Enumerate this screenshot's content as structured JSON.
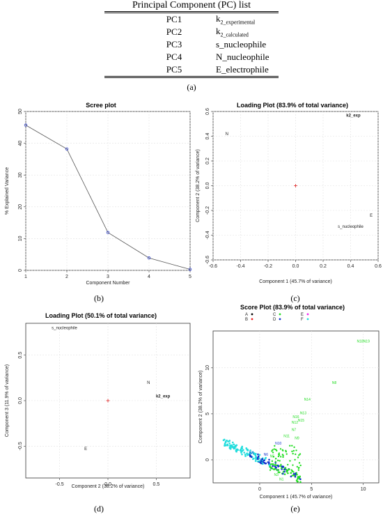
{
  "table": {
    "title": "Principal Component (PC) list",
    "rows": [
      {
        "pc": "PC1",
        "var_main": "k",
        "var_sub": "2_experimental"
      },
      {
        "pc": "PC2",
        "var_main": "k",
        "var_sub": "2_calculated"
      },
      {
        "pc": "PC3",
        "var_main": "s_nucleophile",
        "var_sub": ""
      },
      {
        "pc": "PC4",
        "var_main": "N_nucleophile",
        "var_sub": ""
      },
      {
        "pc": "PC5",
        "var_main": "E_electrophile",
        "var_sub": ""
      }
    ],
    "panel_label": "(a)"
  },
  "panel_labels": {
    "b": "(b)",
    "c": "(c)",
    "d": "(d)",
    "e": "(e)"
  },
  "chart_data": [
    {
      "type": "line",
      "title": "Scree plot",
      "xlabel": "Component Number",
      "ylabel": "% Explained Variance",
      "x": [
        1,
        2,
        3,
        4,
        5
      ],
      "values": [
        45.7,
        38.2,
        11.9,
        3.9,
        0.3
      ],
      "xlim": [
        1,
        5
      ],
      "ylim": [
        0,
        50
      ],
      "yticks": [
        0,
        10,
        20,
        30,
        40,
        50
      ],
      "xticks": [
        1,
        2,
        3,
        4,
        5
      ],
      "grid": true,
      "color": "#3344cc"
    },
    {
      "type": "scatter",
      "title": "Loading Plot (83.9% of total variance)",
      "xlabel": "Component 1 (45.7% of variance)",
      "ylabel": "Component 2 (38.2% of variance)",
      "xlim": [
        -0.6,
        0.6
      ],
      "ylim": [
        -0.6,
        0.6
      ],
      "xticks": [
        -0.6,
        -0.4,
        -0.2,
        0.0,
        0.2,
        0.4,
        0.6
      ],
      "yticks": [
        -0.6,
        -0.4,
        -0.2,
        0.0,
        0.2,
        0.4,
        0.6
      ],
      "grid": true,
      "points": [
        {
          "label": "k2_exp",
          "x": 0.42,
          "y": 0.57
        },
        {
          "label": "N",
          "x": -0.5,
          "y": 0.42
        },
        {
          "label": "E",
          "x": 0.55,
          "y": -0.24
        },
        {
          "label": "s_nucleophile",
          "x": 0.4,
          "y": -0.33
        }
      ],
      "origin_marker": {
        "x": 0,
        "y": 0,
        "color": "#dd2222"
      }
    },
    {
      "type": "scatter",
      "title": "Loading Plot (50.1% of total variance)",
      "xlabel": "Component 2 (38.2% of variance)",
      "ylabel": "Component 3 (11.9% of variance)",
      "xlim": [
        -0.85,
        0.85
      ],
      "ylim": [
        -0.85,
        0.85
      ],
      "xticks": [
        -0.5,
        0.0,
        0.5
      ],
      "yticks": [
        -0.5,
        0.0,
        0.5
      ],
      "grid": true,
      "points": [
        {
          "label": "s_nucleophile",
          "x": -0.45,
          "y": 0.8
        },
        {
          "label": "N",
          "x": 0.42,
          "y": 0.2
        },
        {
          "label": "k2_exp",
          "x": 0.57,
          "y": 0.05
        },
        {
          "label": "E",
          "x": -0.23,
          "y": -0.53
        }
      ],
      "origin_marker": {
        "x": 0,
        "y": 0,
        "color": "#dd2222"
      }
    },
    {
      "type": "scatter",
      "title": "Score Plot (83.9% of total variance)",
      "xlabel": "Component 1 (45.7% of variance)",
      "ylabel": "Component 2 (38.2% of variance)",
      "xlim": [
        -4.5,
        11.5
      ],
      "ylim": [
        -2.5,
        14
      ],
      "xticks": [
        0,
        5,
        10
      ],
      "yticks": [
        0,
        5,
        10
      ],
      "grid": true,
      "legend": [
        {
          "name": "A",
          "color": "#000000"
        },
        {
          "name": "B",
          "color": "#ee2222"
        },
        {
          "name": "C",
          "color": "#22dd22"
        },
        {
          "name": "D",
          "color": "#1133cc"
        },
        {
          "name": "E",
          "color": "#ee22ee"
        },
        {
          "name": "F",
          "color": "#22dddd"
        }
      ],
      "labelled_points": [
        {
          "label": "N18N19",
          "x": 10.0,
          "y": 12.9,
          "series": "C"
        },
        {
          "label": "N8",
          "x": 7.2,
          "y": 8.4,
          "series": "C"
        },
        {
          "label": "N14",
          "x": 4.6,
          "y": 6.6,
          "series": "C"
        },
        {
          "label": "N13",
          "x": 4.2,
          "y": 5.1,
          "series": "C"
        },
        {
          "label": "N16",
          "x": 3.5,
          "y": 4.7,
          "series": "C"
        },
        {
          "label": "N15",
          "x": 4.0,
          "y": 4.3,
          "series": "C"
        },
        {
          "label": "N12",
          "x": 3.4,
          "y": 4.1,
          "series": "C"
        },
        {
          "label": "N7",
          "x": 3.3,
          "y": 3.3,
          "series": "C"
        },
        {
          "label": "N11",
          "x": 2.6,
          "y": 2.6,
          "series": "C"
        },
        {
          "label": "N9",
          "x": 3.6,
          "y": 2.4,
          "series": "C"
        },
        {
          "label": "N10",
          "x": 1.8,
          "y": 1.8,
          "series": "D"
        },
        {
          "label": "N4",
          "x": -0.8,
          "y": 0.8,
          "series": "D"
        },
        {
          "label": "N6",
          "x": 0.6,
          "y": 0.6,
          "series": "D"
        },
        {
          "label": "N5",
          "x": 1.2,
          "y": 0.4,
          "series": "C"
        },
        {
          "label": "N3",
          "x": 1.6,
          "y": -1.6,
          "series": "C"
        },
        {
          "label": "N1",
          "x": 2.1,
          "y": -2.1,
          "series": "C"
        }
      ]
    }
  ]
}
